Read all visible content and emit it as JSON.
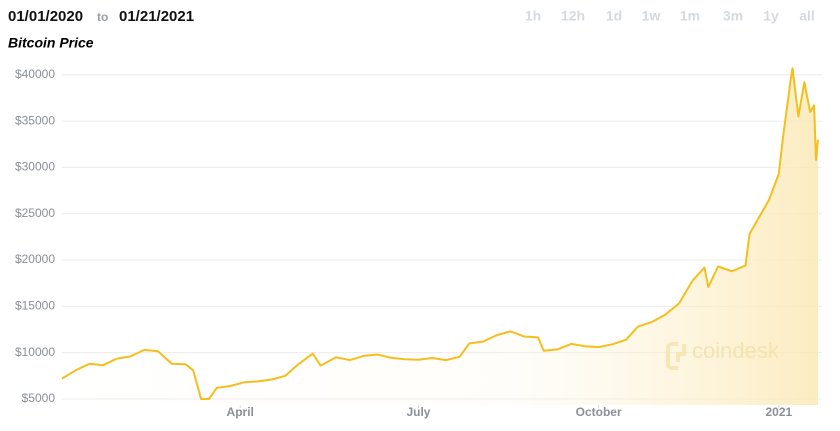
{
  "header": {
    "start_date": "01/01/2020",
    "separator": "to",
    "end_date": "01/21/2021",
    "ranges": [
      "1h",
      "12h",
      "1d",
      "1w",
      "1m",
      "3m",
      "1y",
      "all"
    ]
  },
  "watermark": "coindesk",
  "chart_data": {
    "type": "area",
    "title": "Bitcoin Price",
    "color": "#f4bf1e",
    "grid": true,
    "x": [
      "2020-01-01",
      "2020-01-08",
      "2020-01-15",
      "2020-01-22",
      "2020-01-29",
      "2020-02-05",
      "2020-02-12",
      "2020-02-19",
      "2020-02-26",
      "2020-03-04",
      "2020-03-08",
      "2020-03-12",
      "2020-03-16",
      "2020-03-20",
      "2020-03-27",
      "2020-04-03",
      "2020-04-10",
      "2020-04-17",
      "2020-04-24",
      "2020-05-01",
      "2020-05-08",
      "2020-05-12",
      "2020-05-20",
      "2020-05-27",
      "2020-06-03",
      "2020-06-10",
      "2020-06-17",
      "2020-06-24",
      "2020-07-01",
      "2020-07-08",
      "2020-07-15",
      "2020-07-22",
      "2020-07-27",
      "2020-08-03",
      "2020-08-10",
      "2020-08-17",
      "2020-08-24",
      "2020-08-31",
      "2020-09-03",
      "2020-09-10",
      "2020-09-17",
      "2020-09-24",
      "2020-10-01",
      "2020-10-08",
      "2020-10-15",
      "2020-10-21",
      "2020-10-28",
      "2020-11-04",
      "2020-11-11",
      "2020-11-18",
      "2020-11-24",
      "2020-11-26",
      "2020-12-01",
      "2020-12-08",
      "2020-12-15",
      "2020-12-17",
      "2020-12-20",
      "2020-12-27",
      "2021-01-01",
      "2021-01-03",
      "2021-01-07",
      "2021-01-08",
      "2021-01-11",
      "2021-01-14",
      "2021-01-17",
      "2021-01-19",
      "2021-01-20",
      "2021-01-21"
    ],
    "values": [
      7200,
      8100,
      8800,
      8650,
      9350,
      9600,
      10300,
      10150,
      8800,
      8750,
      8100,
      5000,
      5000,
      6200,
      6400,
      6800,
      6900,
      7100,
      7500,
      8800,
      9900,
      8600,
      9500,
      9200,
      9650,
      9800,
      9450,
      9300,
      9230,
      9430,
      9200,
      9550,
      11000,
      11200,
      11900,
      12300,
      11750,
      11650,
      10200,
      10350,
      10950,
      10700,
      10600,
      10900,
      11400,
      12800,
      13300,
      14100,
      15300,
      17800,
      19200,
      17100,
      19300,
      18800,
      19400,
      22800,
      23900,
      26500,
      29300,
      33000,
      39400,
      40700,
      35500,
      39200,
      36000,
      36700,
      30800,
      33000
    ],
    "xlim": [
      "2020-01-01",
      "2021-01-21"
    ],
    "xticks": [
      {
        "value": "2020-04-01",
        "label": "April"
      },
      {
        "value": "2020-07-01",
        "label": "July"
      },
      {
        "value": "2020-10-01",
        "label": "October"
      },
      {
        "value": "2021-01-01",
        "label": "2021"
      }
    ],
    "ylim": [
      4350,
      41600
    ],
    "yticks": [
      {
        "value": 5000,
        "label": "$5000"
      },
      {
        "value": 10000,
        "label": "$10000"
      },
      {
        "value": 15000,
        "label": "$15000"
      },
      {
        "value": 20000,
        "label": "$20000"
      },
      {
        "value": 25000,
        "label": "$25000"
      },
      {
        "value": 30000,
        "label": "$30000"
      },
      {
        "value": 35000,
        "label": "$35000"
      },
      {
        "value": 40000,
        "label": "$40000"
      }
    ]
  }
}
